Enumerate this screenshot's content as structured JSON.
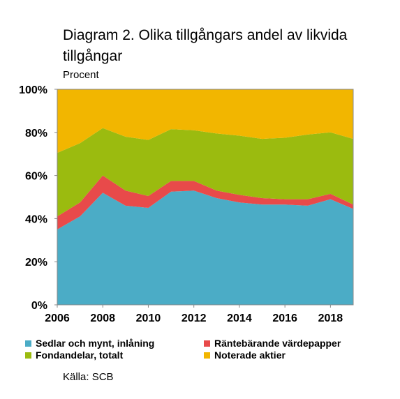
{
  "chart_data": {
    "type": "area",
    "stacked": true,
    "title": "Diagram 2. Olika tillgångars andel av likvida tillgångar",
    "unit_label": "Procent",
    "source": "Källa: SCB",
    "x": [
      2006,
      2007,
      2008,
      2009,
      2010,
      2011,
      2012,
      2013,
      2014,
      2015,
      2016,
      2017,
      2018,
      2019
    ],
    "x_tick_labels": [
      "2006",
      "2008",
      "2010",
      "2012",
      "2014",
      "2016",
      "2018"
    ],
    "y_tick_labels": [
      "0%",
      "20%",
      "40%",
      "60%",
      "80%",
      "100%"
    ],
    "ylim": [
      0,
      100
    ],
    "xlim": [
      2006,
      2019
    ],
    "grid": false,
    "legend_position": "bottom",
    "series": [
      {
        "name": "Sedlar och mynt, inlåning",
        "color": "#4bacc6",
        "values": [
          35,
          41,
          52,
          46,
          45,
          52.5,
          53,
          49.5,
          47.5,
          46.5,
          46.5,
          46,
          49,
          44.5
        ]
      },
      {
        "name": "Räntebärande värdepapper",
        "color": "#e84a4a",
        "values": [
          6,
          6.5,
          8,
          7,
          5.5,
          5,
          4.5,
          3.5,
          3.5,
          3,
          2.5,
          3,
          2.5,
          2
        ]
      },
      {
        "name": "Fondandelar, totalt",
        "color": "#9bbb0f",
        "values": [
          29.5,
          27.5,
          22,
          25,
          26,
          24,
          23.5,
          26.5,
          27.5,
          27.5,
          28.5,
          30,
          28.5,
          30.5
        ]
      },
      {
        "name": "Noterade aktier",
        "color": "#f2b600",
        "values": [
          29.5,
          25,
          18,
          22,
          23.5,
          18.5,
          19,
          20.5,
          21.5,
          23,
          22.5,
          21,
          20,
          23
        ]
      }
    ]
  }
}
